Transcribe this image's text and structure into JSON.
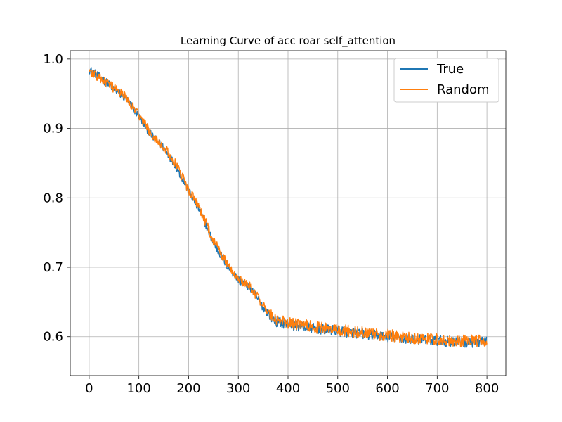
{
  "chart_data": {
    "type": "line",
    "title": "Learning Curve of acc roar self_attention",
    "xlabel": "",
    "ylabel": "",
    "xlim": [
      -38,
      838
    ],
    "ylim": [
      0.544,
      1.012
    ],
    "xticks": [
      0,
      100,
      200,
      300,
      400,
      500,
      600,
      700,
      800
    ],
    "yticks": [
      0.6,
      0.7,
      0.8,
      0.9,
      1.0
    ],
    "xtick_labels": [
      "0",
      "100",
      "200",
      "300",
      "400",
      "500",
      "600",
      "700",
      "800"
    ],
    "ytick_labels": [
      "0.6",
      "0.7",
      "0.8",
      "0.9",
      "1.0"
    ],
    "grid": true,
    "legend_position": "upper right",
    "series": [
      {
        "name": "True",
        "color": "#1f77b4",
        "x": [
          0,
          25,
          50,
          75,
          100,
          125,
          150,
          175,
          200,
          225,
          250,
          275,
          300,
          325,
          350,
          375,
          400,
          450,
          500,
          550,
          600,
          650,
          700,
          750,
          800
        ],
        "values": [
          0.985,
          0.972,
          0.957,
          0.942,
          0.918,
          0.89,
          0.872,
          0.845,
          0.81,
          0.778,
          0.735,
          0.705,
          0.682,
          0.67,
          0.642,
          0.622,
          0.618,
          0.612,
          0.608,
          0.604,
          0.6,
          0.596,
          0.594,
          0.592,
          0.592
        ],
        "noise": 0.006
      },
      {
        "name": "Random",
        "color": "#ff7f0e",
        "x": [
          0,
          25,
          50,
          75,
          100,
          125,
          150,
          175,
          200,
          225,
          250,
          275,
          300,
          325,
          350,
          375,
          400,
          450,
          500,
          550,
          600,
          650,
          700,
          750,
          800
        ],
        "values": [
          0.983,
          0.97,
          0.958,
          0.944,
          0.92,
          0.892,
          0.874,
          0.847,
          0.812,
          0.78,
          0.738,
          0.708,
          0.684,
          0.672,
          0.644,
          0.624,
          0.62,
          0.614,
          0.61,
          0.606,
          0.602,
          0.598,
          0.596,
          0.594,
          0.594
        ],
        "noise": 0.007
      }
    ]
  }
}
